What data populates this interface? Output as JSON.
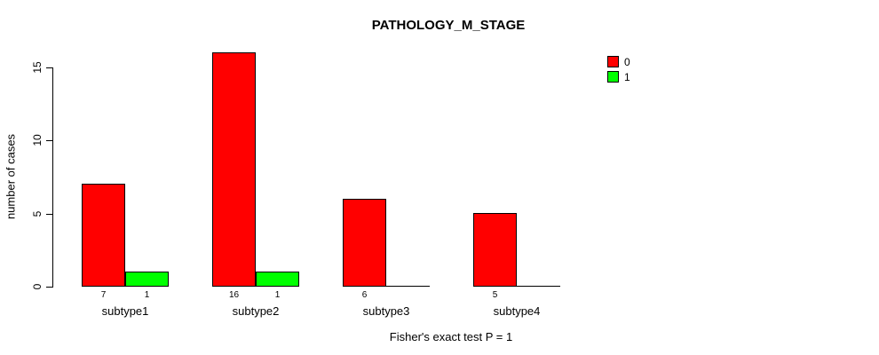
{
  "title": "PATHOLOGY_M_STAGE",
  "footer": "Fisher's exact test P = 1",
  "chart_data": {
    "type": "bar",
    "title": "PATHOLOGY_M_STAGE",
    "xlabel": "",
    "ylabel": "number of cases",
    "ylim": [
      0,
      15
    ],
    "yticks": [
      0,
      5,
      10,
      15
    ],
    "grid": false,
    "legend_position": "top-right",
    "categories": [
      "subtype1",
      "subtype2",
      "subtype3",
      "subtype4"
    ],
    "series": [
      {
        "name": "0",
        "color": "#FF0000",
        "values": [
          7,
          16,
          6,
          5
        ]
      },
      {
        "name": "1",
        "color": "#00FF00",
        "values": [
          1,
          1,
          0,
          0
        ]
      }
    ],
    "annotation": "Fisher's exact test P = 1"
  }
}
